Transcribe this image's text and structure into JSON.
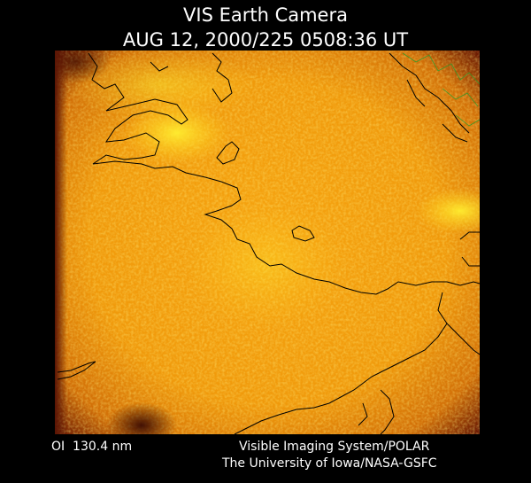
{
  "header": {
    "title": "VIS Earth Camera",
    "timestamp": "AUG 12, 2000/225 0508:36 UT"
  },
  "footer": {
    "filter": "OI  130.4 nm",
    "credit_line_1": "Visible Imaging System/POLAR",
    "credit_line_2": "The University of Iowa/NASA-GSFC"
  }
}
